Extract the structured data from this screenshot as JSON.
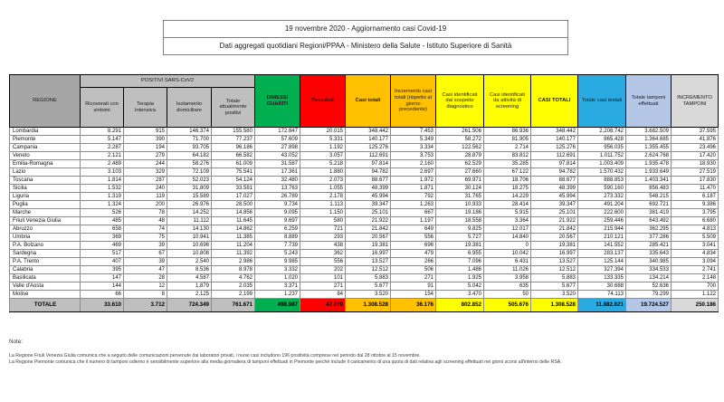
{
  "title": {
    "line1": "19 novembre 2020 - Aggiornamento casi Covid-19",
    "line2": "Dati aggregati quotidiani Regioni/PPAA - Ministero della Salute - Istituto Superiore di Sanità"
  },
  "table": {
    "regione_header": "REGIONE",
    "positivi_group_header": "POSITIVI SARS-CoV2",
    "positivi_sub_headers": [
      "Ricoverati con sintomi",
      "Terapia intensiva",
      "Isolamento domiciliare",
      "Totale attualmente positivi"
    ],
    "main_headers": [
      {
        "label": "DIMESSI GUARITI",
        "bg": "#00B050",
        "bold": true
      },
      {
        "label": "Deceduti",
        "bg": "#FF0000",
        "bold": true
      },
      {
        "label": "Casi totali",
        "bg": "#FFC000",
        "bold": true
      },
      {
        "label": "Incremento casi totali (rispetto al giorno precedente)",
        "bg": "#FFC000",
        "bold": false
      },
      {
        "label": "Casi identificati dal sospetto diagnostico",
        "bg": "#FFFF00",
        "bold": false
      },
      {
        "label": "Casi identificati da attività di screening",
        "bg": "#FFFF00",
        "bold": false
      },
      {
        "label": "CASI TOTALI",
        "bg": "#FFFF00",
        "bold": true
      },
      {
        "label": "Totale casi testati",
        "bg": "#29ABE2",
        "bold": false
      },
      {
        "label": "Totale tamponi effettuati",
        "bg": "#B4C7E7",
        "bold": false
      },
      {
        "label": "INCREMENTO TAMPONI",
        "bg": "#D9D9D9",
        "bold": false
      }
    ],
    "rows": [
      [
        "Lombardia",
        "8.291",
        "915",
        "146.374",
        "155.580",
        "172.847",
        "20.015",
        "348.442",
        "7.453",
        "261.506",
        "86.936",
        "348.442",
        "2.208.742",
        "3.682.509",
        "37.595"
      ],
      [
        "Piemonte",
        "5.147",
        "390",
        "71.700",
        "77.237",
        "57.609",
        "5.331",
        "140.177",
        "5.349",
        "58.272",
        "81.905",
        "140.177",
        "865.428",
        "1.364.685",
        "41.876"
      ],
      [
        "Campania",
        "2.287",
        "194",
        "93.705",
        "96.186",
        "27.898",
        "1.192",
        "125.276",
        "3.334",
        "122.562",
        "2.714",
        "125.276",
        "956.035",
        "1.355.455",
        "23.496"
      ],
      [
        "Veneto",
        "2.121",
        "279",
        "64.182",
        "66.582",
        "43.052",
        "3.057",
        "112.691",
        "3.753",
        "28.879",
        "83.812",
        "112.691",
        "1.011.752",
        "2.624.768",
        "17.420"
      ],
      [
        "Emilia-Romagna",
        "2.489",
        "244",
        "58.276",
        "61.009",
        "31.587",
        "5.218",
        "97.814",
        "2.160",
        "62.529",
        "35.285",
        "97.814",
        "1.003.409",
        "1.935.478",
        "18.930"
      ],
      [
        "Lazio",
        "3.103",
        "329",
        "72.109",
        "75.541",
        "17.361",
        "1.880",
        "94.782",
        "2.697",
        "27.660",
        "67.122",
        "94.782",
        "1.570.432",
        "1.933.649",
        "27.519"
      ],
      [
        "Toscana",
        "1.814",
        "287",
        "52.023",
        "54.124",
        "32.480",
        "2.073",
        "88.677",
        "1.972",
        "69.971",
        "18.706",
        "88.677",
        "888.853",
        "1.403.341",
        "17.830"
      ],
      [
        "Sicilia",
        "1.532",
        "240",
        "31.809",
        "33.581",
        "13.763",
        "1.055",
        "48.399",
        "1.871",
        "30.124",
        "18.275",
        "48.399",
        "590.160",
        "856.483",
        "11.470"
      ],
      [
        "Liguria",
        "1.319",
        "119",
        "15.589",
        "17.027",
        "26.789",
        "2.178",
        "45.994",
        "792",
        "31.765",
        "14.229",
        "45.994",
        "273.332",
        "548.215",
        "6.187"
      ],
      [
        "Puglia",
        "1.324",
        "200",
        "26.976",
        "28.500",
        "9.734",
        "1.113",
        "39.347",
        "1.263",
        "10.933",
        "28.414",
        "39.347",
        "491.204",
        "692.721",
        "9.386"
      ],
      [
        "Marche",
        "526",
        "78",
        "14.252",
        "14.856",
        "9.095",
        "1.150",
        "25.101",
        "667",
        "19.186",
        "5.915",
        "25.101",
        "222.600",
        "381.419",
        "3.795"
      ],
      [
        "Friuli Venezia Giulia",
        "485",
        "48",
        "11.112",
        "11.645",
        "9.697",
        "580",
        "21.922",
        "1.197",
        "18.558",
        "3.364",
        "21.922",
        "259.446",
        "643.492",
        "6.680"
      ],
      [
        "Abruzzo",
        "658",
        "74",
        "14.130",
        "14.862",
        "6.259",
        "721",
        "21.842",
        "649",
        "9.825",
        "12.017",
        "21.842",
        "215.944",
        "362.295",
        "4.813"
      ],
      [
        "Umbria",
        "369",
        "75",
        "10.941",
        "11.385",
        "8.889",
        "293",
        "20.567",
        "556",
        "5.727",
        "14.840",
        "20.567",
        "210.121",
        "377.286",
        "5.509"
      ],
      [
        "P.A. Bolzano",
        "469",
        "39",
        "10.696",
        "11.204",
        "7.739",
        "438",
        "19.381",
        "696",
        "19.381",
        "0",
        "19.381",
        "141.552",
        "285.421",
        "3.041"
      ],
      [
        "Sardegna",
        "517",
        "67",
        "10.808",
        "11.392",
        "5.243",
        "362",
        "16.997",
        "479",
        "6.955",
        "10.042",
        "16.997",
        "283.137",
        "335.643",
        "4.834"
      ],
      [
        "P.A. Trento",
        "407",
        "39",
        "2.540",
        "2.986",
        "9.985",
        "556",
        "13.527",
        "266",
        "7.096",
        "6.431",
        "13.527",
        "125.144",
        "340.985",
        "3.094"
      ],
      [
        "Calabria",
        "395",
        "47",
        "8.536",
        "8.978",
        "3.332",
        "202",
        "12.512",
        "506",
        "1.486",
        "11.026",
        "12.512",
        "327.394",
        "334.533",
        "2.741"
      ],
      [
        "Basilicata",
        "147",
        "28",
        "4.587",
        "4.762",
        "1.020",
        "101",
        "5.883",
        "271",
        "1.925",
        "3.958",
        "5.883",
        "133.335",
        "134.214",
        "2.148"
      ],
      [
        "Valle d'Aosta",
        "144",
        "12",
        "1.879",
        "2.035",
        "3.371",
        "271",
        "5.677",
        "91",
        "5.042",
        "635",
        "5.677",
        "30.688",
        "52.636",
        "700"
      ],
      [
        "Molise",
        "66",
        "8",
        "2.125",
        "2.199",
        "1.237",
        "84",
        "3.520",
        "154",
        "3.470",
        "50",
        "3.520",
        "74.113",
        "79.299",
        "1.122"
      ]
    ],
    "totale": {
      "label": "TOTALE",
      "values": [
        "33.610",
        "3.712",
        "724.349",
        "761.671",
        "498.987",
        "47.870",
        "1.308.528",
        "36.176",
        "802.852",
        "505.676",
        "1.308.528",
        "11.882.821",
        "19.724.527",
        "250.186"
      ],
      "cell_colors": [
        "#BFBFBF",
        "#BFBFBF",
        "#BFBFBF",
        "#BFBFBF",
        "#BFBFBF",
        "#00B050",
        "#FF0000",
        "#FFC000",
        "#FFC000",
        "#FFFF00",
        "#FFFF00",
        "#FFFF00",
        "#29ABE2",
        "#B4C7E7",
        "#D9D9D9"
      ]
    },
    "thick_left_value_indices": [
      0,
      4,
      8,
      11
    ]
  },
  "notes": {
    "title": "Note:",
    "items": [
      "La Regione Friuli Venezia Giulia comunica che a seguito delle comunicazioni pervenute dai laboratori privati, i nuovi casi includono 196 positività comprese nel periodo dal 28 ottobre al 15 novembre.",
      "La Regione Piemonte comunica che il numero di tamponi odierno è sensibilmente superiore alla media giornaliera di tamponi effettuati in Piemonte perché include il caricamento di una quota di dati relativa agli screening effettuati nei giorni scorsi all'interno delle RSA."
    ]
  },
  "colors": {
    "header_regione_bg": "#A6A6A6",
    "header_positivi_bg": "#BFBFBF",
    "green": "#00B050",
    "red": "#FF0000",
    "orange": "#FFC000",
    "yellow": "#FFFF00",
    "cyan": "#29ABE2",
    "periwinkle": "#B4C7E7",
    "light_gray": "#D9D9D9"
  }
}
